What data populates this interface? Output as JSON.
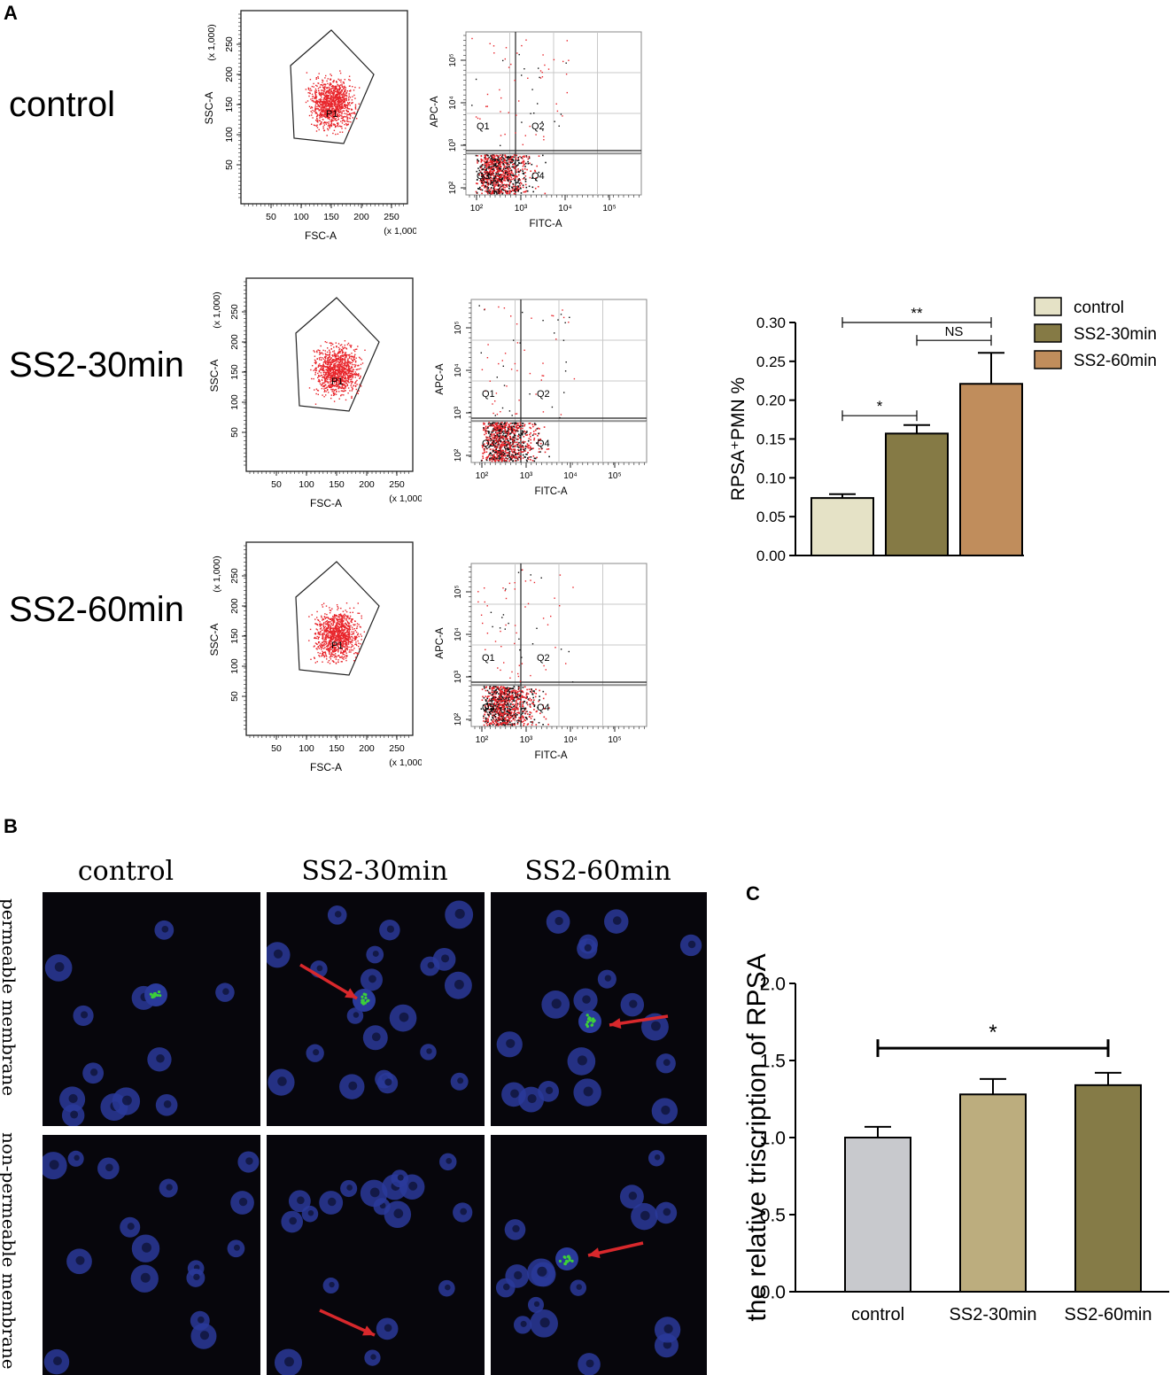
{
  "panel_labels": {
    "a": "A",
    "b": "B",
    "c": "C"
  },
  "flow": {
    "row_labels": [
      "control",
      "SS2-30min",
      "SS2-60min"
    ],
    "scatter_axes": {
      "x_label": "FSC-A",
      "y_label": "SSC-A",
      "x_scale": "(x 1,000)",
      "y_scale": "(x 1,000)",
      "x_ticks": [
        "50",
        "100",
        "150",
        "200",
        "250"
      ],
      "y_ticks": [
        "50",
        "100",
        "150",
        "200",
        "250"
      ],
      "gate": "P1"
    },
    "quad_axes": {
      "x_label": "FITC-A",
      "y_label": "APC-A",
      "x_ticks": [
        "10²",
        "10³",
        "10⁴",
        "10⁵"
      ],
      "y_ticks": [
        "10²",
        "10³",
        "10⁴",
        "10⁵"
      ],
      "quadrants": [
        "Q1",
        "Q2",
        "Q3",
        "Q4"
      ]
    },
    "colors": {
      "gated": "#e8242a",
      "ungated": "#111111"
    }
  },
  "micro": {
    "columns": [
      "control",
      "SS2-30min",
      "SS2-60min"
    ],
    "rows": [
      "permeable membrane",
      "non-permeable membrane"
    ],
    "colors": {
      "nucleus": "#2a3a9a",
      "rpsa": "#3ccf3a",
      "arrow": "#d8282c"
    }
  },
  "chart_data": [
    {
      "id": "rpsa-pmn",
      "type": "bar",
      "categories": [
        "control",
        "SS2-30min",
        "SS2-60min"
      ],
      "values": [
        0.074,
        0.157,
        0.221
      ],
      "errors": [
        0.005,
        0.011,
        0.04
      ],
      "colors": [
        "#e5e2c6",
        "#857a45",
        "#c08d5c"
      ],
      "ylabel": "RPSA⁺PMN %",
      "ylim": [
        0,
        0.3
      ],
      "yticks": [
        "0.00",
        "0.05",
        "0.10",
        "0.15",
        "0.20",
        "0.25",
        "0.30"
      ],
      "legend": [
        "control",
        "SS2-30min",
        "SS2-60min"
      ],
      "legend_position": "right",
      "significance": [
        {
          "from": 0,
          "to": 2,
          "label": "**"
        },
        {
          "from": 1,
          "to": 2,
          "label": "NS"
        },
        {
          "from": 0,
          "to": 1,
          "label": "*"
        }
      ]
    },
    {
      "id": "rpsa-transcription",
      "type": "bar",
      "categories": [
        "control",
        "SS2-30min",
        "SS2-60min"
      ],
      "values": [
        1.0,
        1.28,
        1.34
      ],
      "errors": [
        0.07,
        0.1,
        0.08
      ],
      "colors": [
        "#c8c9cd",
        "#bcad7e",
        "#857b47"
      ],
      "ylabel": "the relative triscription of RPSA",
      "ylim": [
        0,
        2
      ],
      "yticks": [
        "0.0",
        "0.5",
        "1.0",
        "1.5",
        "2.0"
      ],
      "significance": [
        {
          "from": 0,
          "to": 2,
          "label": "*"
        }
      ]
    }
  ]
}
